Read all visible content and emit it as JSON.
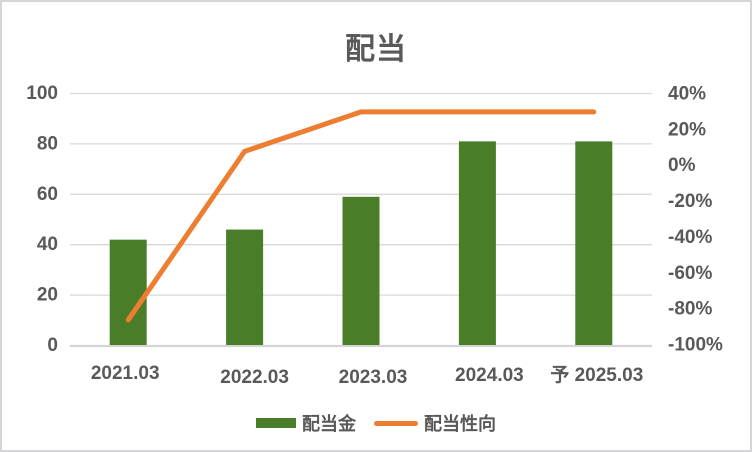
{
  "chart_data": {
    "type": "bar",
    "subtype": "bar-line-combo",
    "title": "配当",
    "categories": [
      "2021.03",
      "2022.03",
      "2023.03",
      "2024.03",
      "予 2025.03"
    ],
    "series": [
      {
        "name": "配当金",
        "type": "bar",
        "axis": "left",
        "color": "#4A7D27",
        "values": [
          42,
          46,
          59,
          81,
          81
        ]
      },
      {
        "name": "配当性向",
        "type": "line",
        "axis": "right",
        "color": "#ED7D31",
        "values": [
          -86,
          8,
          30,
          30,
          30
        ]
      }
    ],
    "left_axis": {
      "min": 0,
      "max": 100,
      "step": 20,
      "tick_labels": [
        "100",
        "80",
        "60",
        "40",
        "20",
        "0"
      ]
    },
    "right_axis": {
      "min": -100,
      "max": 40,
      "step": 20,
      "tick_labels": [
        "40%",
        "20%",
        "0%",
        "-20%",
        "-40%",
        "-60%",
        "-80%",
        "-100%"
      ]
    },
    "grid": true,
    "legend_position": "bottom"
  },
  "colors": {
    "title_text": "#595959",
    "axis_text": "#595959",
    "gridline": "#D9D9D9",
    "axis_line": "#D4D4D4",
    "frame_border": "#D6D6D9",
    "bar": "#4A7D27",
    "line": "#ED7D31"
  }
}
